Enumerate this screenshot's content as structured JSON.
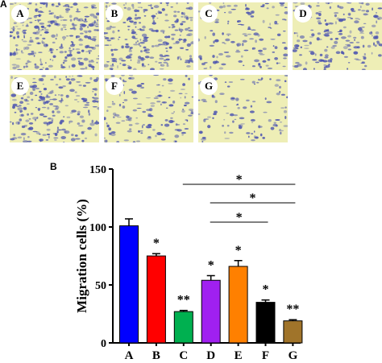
{
  "figure": {
    "panel_a_label": "A",
    "panel_b_label": "B"
  },
  "micrographs": [
    {
      "label": "A",
      "density": 0.95
    },
    {
      "label": "B",
      "density": 0.8
    },
    {
      "label": "C",
      "density": 0.35
    },
    {
      "label": "D",
      "density": 0.6
    },
    {
      "label": "E",
      "density": 0.7
    },
    {
      "label": "F",
      "density": 0.45
    },
    {
      "label": "G",
      "density": 0.25
    }
  ],
  "colors": {
    "micro_background": "#eeeeb6",
    "cell_stain": "#4a52b0"
  },
  "chart_data": {
    "type": "bar",
    "ylabel": "Migration cells (%)",
    "xlabel": "",
    "ylim": [
      0,
      150
    ],
    "yticks": [
      0,
      50,
      100,
      150
    ],
    "categories": [
      "A",
      "B",
      "C",
      "D",
      "E",
      "F",
      "G"
    ],
    "values": [
      101,
      75,
      27,
      54,
      66,
      35,
      19
    ],
    "errors": [
      6,
      2,
      1,
      4,
      5,
      2,
      1
    ],
    "bar_colors": [
      "#0000ff",
      "#ff0000",
      "#00b050",
      "#a020f0",
      "#ff8000",
      "#000000",
      "#a0742a"
    ],
    "bar_annotations": [
      "",
      "*",
      "**",
      "*",
      "*",
      "*",
      "**"
    ],
    "comparisons": [
      {
        "from": "C",
        "to": "G",
        "label": "*"
      },
      {
        "from": "D",
        "to": "G",
        "label": "*"
      },
      {
        "from": "D",
        "to": "F",
        "label": "*"
      }
    ],
    "grid": false,
    "legend": "none"
  }
}
